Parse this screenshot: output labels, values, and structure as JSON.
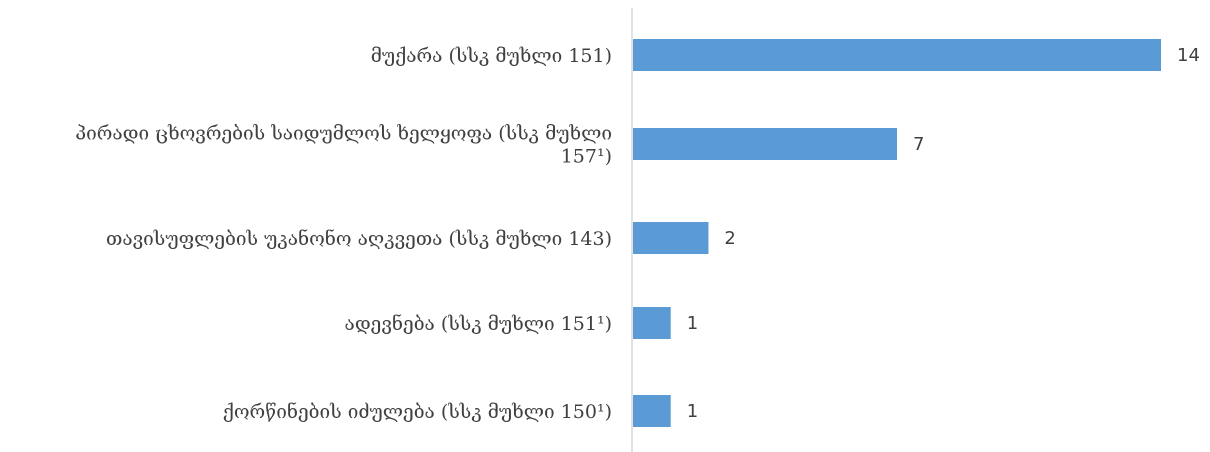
{
  "chart_data": {
    "type": "bar",
    "orientation": "horizontal",
    "categories": [
      [
        "მუქარა (სსკ მუხლი 151)"
      ],
      [
        "პირადი ცხოვრების საიდუმლოს ხელყოფა (სსკ მუხლი",
        "157¹)"
      ],
      [
        "თავისუფლების უკანონო აღკვეთა (სსკ მუხლი 143)"
      ],
      [
        "ადევნება (სსკ მუხლი 151¹)"
      ],
      [
        "ქორწინების იძულება (სსკ მუხლი 150¹)"
      ]
    ],
    "values": [
      14,
      7,
      2,
      1,
      1
    ],
    "value_labels": [
      "14",
      "7",
      "2",
      "1",
      "1"
    ],
    "xlim": [
      0,
      14
    ],
    "grid": false,
    "legend": "none",
    "bar_color": "#5b9bd5",
    "axis_color": "#d9d9d9",
    "text_color": "#404040"
  }
}
